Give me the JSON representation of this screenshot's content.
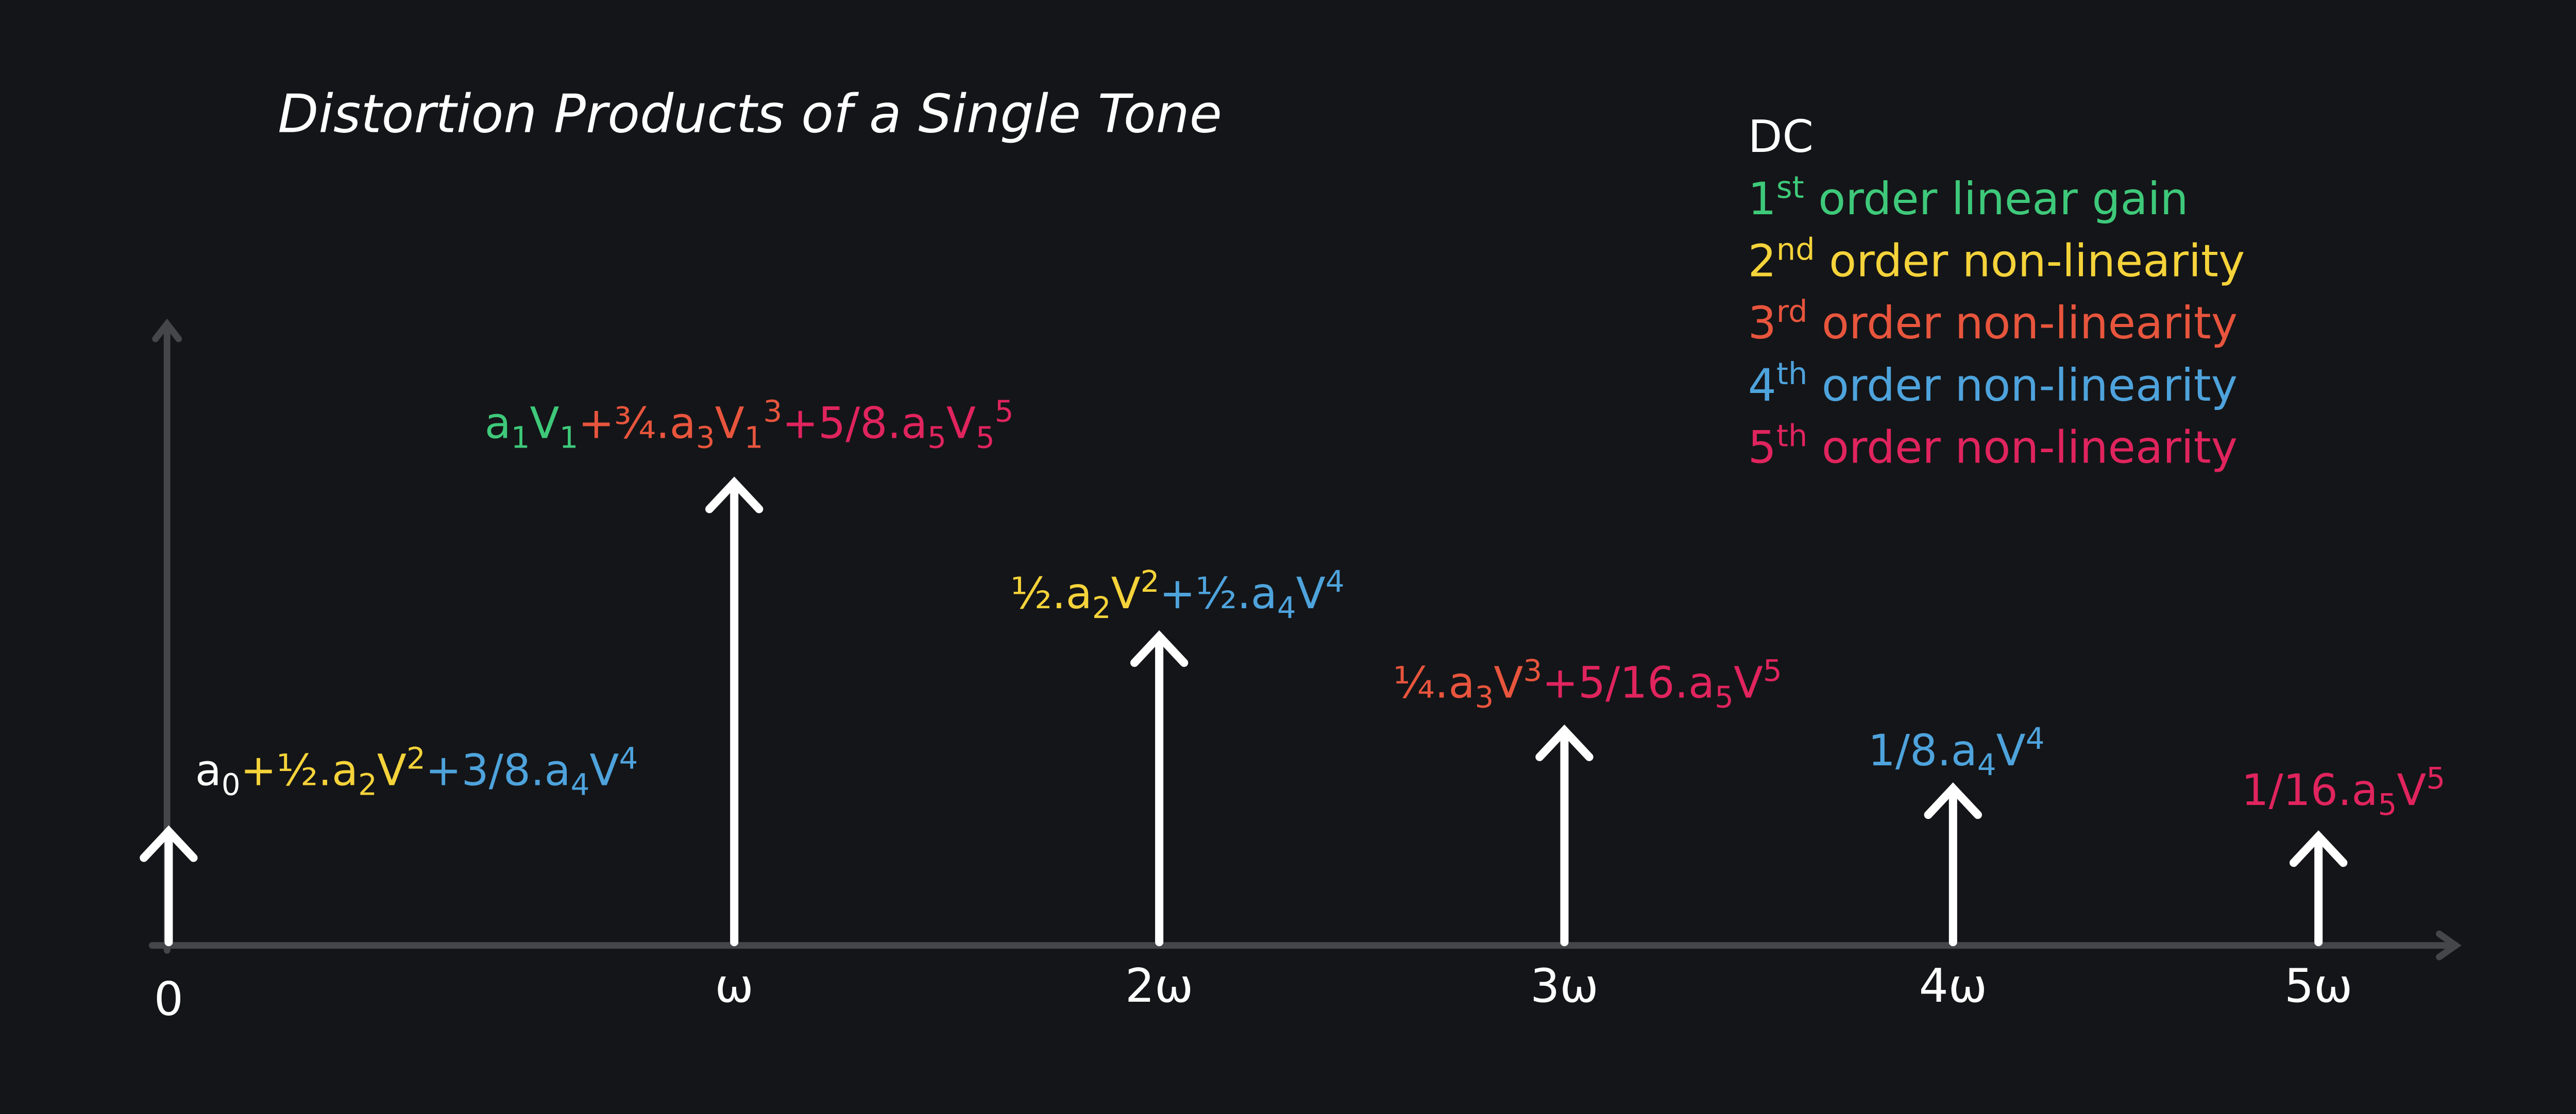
{
  "title": "Distortion Products of a Single Tone",
  "axis_labels": [
    "0",
    "ω",
    "2ω",
    "3ω",
    "4ω",
    "5ω"
  ],
  "spectral_labels": [
    {
      "segments": [
        {
          "color": "#ffffff",
          "parts": [
            {
              "text": "a"
            },
            {
              "text": "0",
              "script": "sub"
            }
          ]
        },
        {
          "color": "#f5d33a",
          "parts": [
            {
              "text": "+½.a"
            },
            {
              "text": "2",
              "script": "sub"
            },
            {
              "text": "V"
            },
            {
              "text": "2",
              "script": "sup"
            }
          ]
        },
        {
          "color": "#4ea3dc",
          "parts": [
            {
              "text": "+3/8.a"
            },
            {
              "text": "4",
              "script": "sub"
            },
            {
              "text": "V"
            },
            {
              "text": "4",
              "script": "sup"
            }
          ]
        }
      ]
    },
    {
      "segments": [
        {
          "color": "#3ec97a",
          "parts": [
            {
              "text": "a"
            },
            {
              "text": "1",
              "script": "sub"
            },
            {
              "text": "V"
            },
            {
              "text": "1",
              "script": "sub"
            }
          ]
        },
        {
          "color": "#e8553d",
          "parts": [
            {
              "text": "+¾.a"
            },
            {
              "text": "3",
              "script": "sub"
            },
            {
              "text": "V"
            },
            {
              "text": "1",
              "script": "sub"
            },
            {
              "text": "3",
              "script": "sup"
            }
          ]
        },
        {
          "color": "#e0245e",
          "parts": [
            {
              "text": "+5/8.a"
            },
            {
              "text": "5",
              "script": "sub"
            },
            {
              "text": "V"
            },
            {
              "text": "5",
              "script": "sub"
            },
            {
              "text": "5",
              "script": "sup"
            }
          ]
        }
      ]
    },
    {
      "segments": [
        {
          "color": "#f5d33a",
          "parts": [
            {
              "text": "½.a"
            },
            {
              "text": "2",
              "script": "sub"
            },
            {
              "text": "V"
            },
            {
              "text": "2",
              "script": "sup"
            }
          ]
        },
        {
          "color": "#4ea3dc",
          "parts": [
            {
              "text": "+½.a"
            },
            {
              "text": "4",
              "script": "sub"
            },
            {
              "text": "V"
            },
            {
              "text": "4",
              "script": "sup"
            }
          ]
        }
      ]
    },
    {
      "segments": [
        {
          "color": "#e8553d",
          "parts": [
            {
              "text": "¼.a"
            },
            {
              "text": "3",
              "script": "sub"
            },
            {
              "text": "V"
            },
            {
              "text": "3",
              "script": "sup"
            }
          ]
        },
        {
          "color": "#e0245e",
          "parts": [
            {
              "text": "+5/16.a"
            },
            {
              "text": "5",
              "script": "sub"
            },
            {
              "text": "V"
            },
            {
              "text": "5",
              "script": "sup"
            }
          ]
        }
      ]
    },
    {
      "segments": [
        {
          "color": "#4ea3dc",
          "parts": [
            {
              "text": "1/8.a"
            },
            {
              "text": "4",
              "script": "sub"
            },
            {
              "text": "V"
            },
            {
              "text": "4",
              "script": "sup"
            }
          ]
        }
      ]
    },
    {
      "segments": [
        {
          "color": "#e0245e",
          "parts": [
            {
              "text": "1/16.a"
            },
            {
              "text": "5",
              "script": "sub"
            },
            {
              "text": "V"
            },
            {
              "text": "5",
              "script": "sup"
            }
          ]
        }
      ]
    }
  ],
  "legend": [
    {
      "color": "#ffffff",
      "parts": [
        {
          "text": "DC"
        }
      ]
    },
    {
      "color": "#3ec97a",
      "parts": [
        {
          "text": "1"
        },
        {
          "text": "st",
          "script": "sup"
        },
        {
          "text": " order linear gain"
        }
      ]
    },
    {
      "color": "#f5d33a",
      "parts": [
        {
          "text": "2"
        },
        {
          "text": "nd",
          "script": "sup"
        },
        {
          "text": " order non-linearity"
        }
      ]
    },
    {
      "color": "#e8553d",
      "parts": [
        {
          "text": "3"
        },
        {
          "text": "rd",
          "script": "sup"
        },
        {
          "text": " order non-linearity"
        }
      ]
    },
    {
      "color": "#4ea3dc",
      "parts": [
        {
          "text": "4"
        },
        {
          "text": "th",
          "script": "sup"
        },
        {
          "text": " order non-linearity"
        }
      ]
    },
    {
      "color": "#e0245e",
      "parts": [
        {
          "text": "5"
        },
        {
          "text": "th",
          "script": "sup"
        },
        {
          "text": " order non-linearity"
        }
      ]
    }
  ]
}
